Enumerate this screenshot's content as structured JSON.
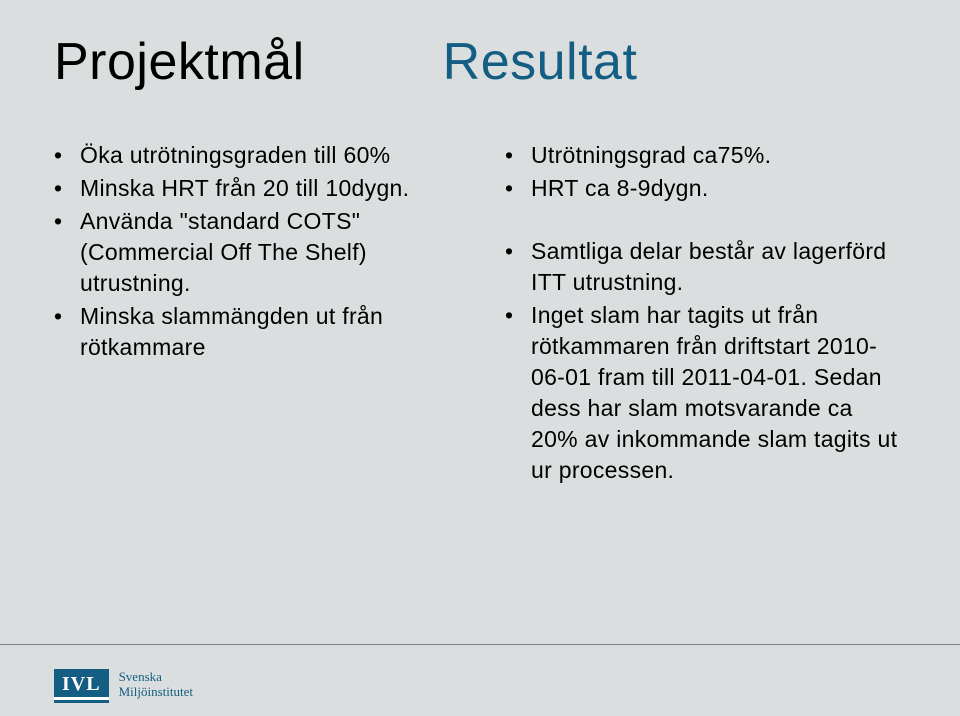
{
  "headings": {
    "left": "Projektmål",
    "right": "Resultat"
  },
  "leftColumn": {
    "items": [
      "Öka utrötningsgraden till 60%",
      "Minska HRT från 20 till 10dygn.",
      "Använda \"standard COTS\" (Commercial Off The Shelf) utrustning.",
      "Minska slammängden ut från rötkammare"
    ]
  },
  "rightColumn": {
    "items": [
      "Utrötningsgrad ca75%.",
      "HRT ca 8-9dygn.",
      "",
      "Samtliga delar består av lagerförd ITT utrustning.",
      "Inget slam har tagits ut från rötkammaren från driftstart 2010-06-01 fram till 2011-04-01. Sedan dess har slam motsvarande ca 20% av inkommande slam tagits ut ur processen."
    ]
  },
  "logo": {
    "mark": "IVL",
    "line1": "Svenska",
    "line2": "Miljöinstitutet"
  },
  "colors": {
    "background": "#dadedf",
    "accent": "#135e82",
    "text": "#000000"
  }
}
